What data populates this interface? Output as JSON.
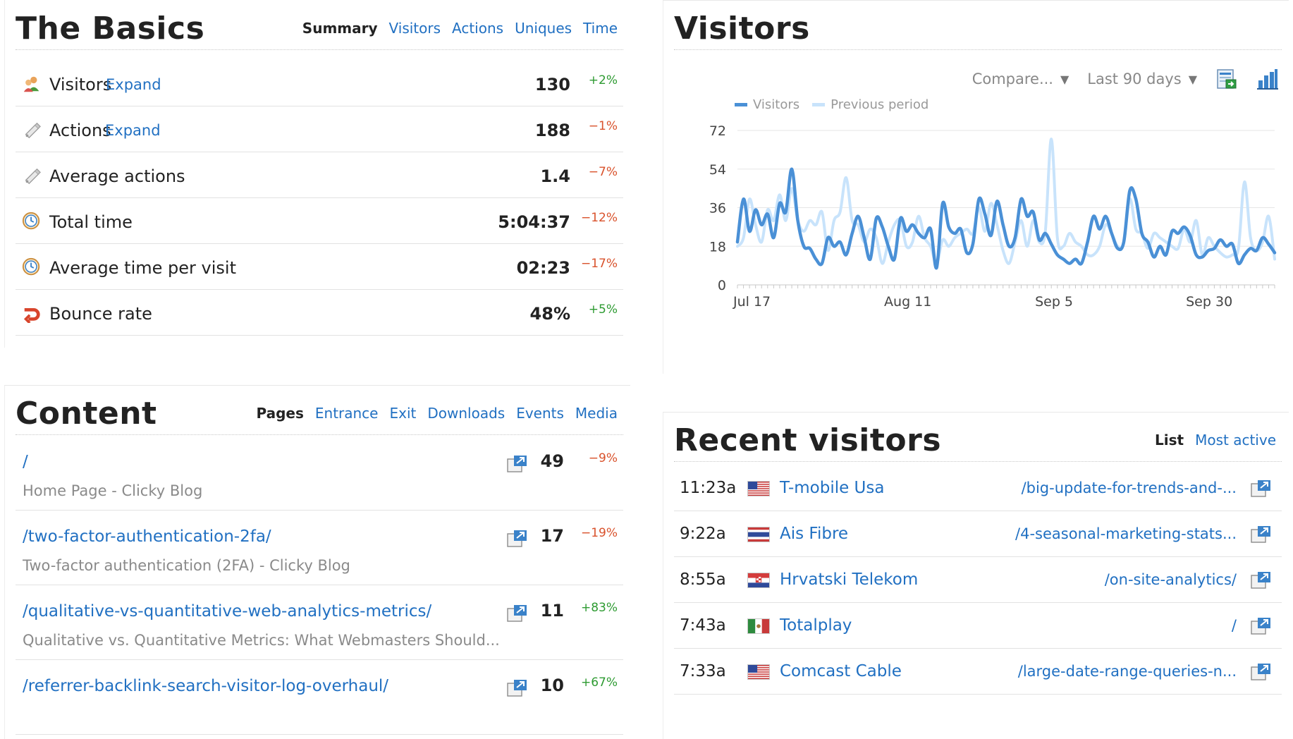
{
  "basics": {
    "title": "The Basics",
    "tabs": [
      "Summary",
      "Visitors",
      "Actions",
      "Uniques",
      "Time"
    ],
    "rows": [
      {
        "icon": "visitors-icon",
        "label": "Visitors",
        "expand": "Expand",
        "value": "130",
        "change": "+2%",
        "trend": "up"
      },
      {
        "icon": "actions-icon",
        "label": "Actions",
        "expand": "Expand",
        "value": "188",
        "change": "−1%",
        "trend": "down"
      },
      {
        "icon": "actions-icon",
        "label": "Average actions",
        "expand": "",
        "value": "1.4",
        "change": "−7%",
        "trend": "down"
      },
      {
        "icon": "clock-icon",
        "label": "Total time",
        "expand": "",
        "value": "5:04:37",
        "change": "−12%",
        "trend": "down"
      },
      {
        "icon": "clock-icon",
        "label": "Average time per visit",
        "expand": "",
        "value": "02:23",
        "change": "−17%",
        "trend": "down"
      },
      {
        "icon": "bounce-icon",
        "label": "Bounce rate",
        "expand": "",
        "value": "48%",
        "change": "+5%",
        "trend": "up"
      }
    ]
  },
  "visitors": {
    "title": "Visitors",
    "compare_label": "Compare...",
    "range_label": "Last 90 days",
    "toolbar_icons": [
      "export-icon",
      "bar-chart-icon"
    ]
  },
  "chart_data": {
    "type": "line",
    "title": "",
    "xlabel": "",
    "ylabel": "",
    "ylim": [
      0,
      72
    ],
    "yticks": [
      "0",
      "18",
      "36",
      "54",
      "72"
    ],
    "xtick_labels": [
      "Jul 17",
      "Aug 11",
      "Sep 5",
      "Sep 30"
    ],
    "xtick_index": [
      0,
      25,
      50,
      75
    ],
    "grid": true,
    "legend_position": "top-left",
    "x_count": 90,
    "series": [
      {
        "name": "Visitors",
        "color": "#4a90d6",
        "values": [
          20,
          40,
          25,
          35,
          28,
          33,
          22,
          38,
          34,
          54,
          30,
          18,
          17,
          12,
          10,
          22,
          18,
          20,
          14,
          24,
          32,
          22,
          12,
          31,
          27,
          18,
          12,
          31,
          25,
          28,
          24,
          22,
          26,
          8,
          38,
          27,
          24,
          26,
          15,
          19,
          40,
          33,
          23,
          39,
          28,
          18,
          22,
          40,
          32,
          34,
          21,
          24,
          19,
          14,
          12,
          10,
          12,
          10,
          20,
          32,
          26,
          32,
          24,
          17,
          20,
          44,
          40,
          24,
          20,
          13,
          18,
          14,
          25,
          24,
          27,
          23,
          14,
          13,
          16,
          17,
          21,
          18,
          19,
          10,
          14,
          17,
          16,
          22,
          19,
          15
        ],
        "line_width": 4.5
      },
      {
        "name": "Previous period",
        "color": "#c8e3fb",
        "values": [
          18,
          22,
          40,
          28,
          20,
          35,
          30,
          42,
          30,
          45,
          30,
          25,
          30,
          28,
          34,
          16,
          30,
          34,
          50,
          30,
          28,
          20,
          26,
          22,
          10,
          20,
          28,
          30,
          18,
          20,
          32,
          22,
          18,
          10,
          21,
          18,
          22,
          24,
          26,
          24,
          36,
          25,
          38,
          28,
          16,
          10,
          20,
          30,
          18,
          30,
          20,
          25,
          68,
          22,
          18,
          24,
          20,
          18,
          14,
          14,
          18,
          28,
          24,
          18,
          20,
          40,
          26,
          24,
          17,
          24,
          22,
          20,
          18,
          17,
          26,
          20,
          30,
          14,
          22,
          18,
          15,
          13,
          14,
          17,
          48,
          22,
          16,
          20,
          32,
          12
        ],
        "line_width": 4
      }
    ]
  },
  "content": {
    "title": "Content",
    "tabs": [
      "Pages",
      "Entrance",
      "Exit",
      "Downloads",
      "Events",
      "Media"
    ],
    "rows": [
      {
        "path": "/",
        "title": "Home Page - Clicky Blog",
        "value": "49",
        "change": "−9%",
        "trend": "down"
      },
      {
        "path": "/two-factor-authentication-2fa/",
        "title": "Two-factor authentication (2FA) - Clicky Blog",
        "value": "17",
        "change": "−19%",
        "trend": "down"
      },
      {
        "path": "/qualitative-vs-quantitative-web-analytics-metrics/",
        "title": "Qualitative vs. Quantitative Metrics: What Webmasters Should...",
        "value": "11",
        "change": "+83%",
        "trend": "up"
      },
      {
        "path": "/referrer-backlink-search-visitor-log-overhaul/",
        "title": "",
        "value": "10",
        "change": "+67%",
        "trend": "up"
      }
    ]
  },
  "recent": {
    "title": "Recent visitors",
    "tabs": [
      "List",
      "Most active"
    ],
    "rows": [
      {
        "time": "11:23a",
        "flag": "us",
        "isp": "T-mobile Usa",
        "path": "/big-update-for-trends-and-..."
      },
      {
        "time": "9:22a",
        "flag": "th",
        "isp": "Ais Fibre",
        "path": "/4-seasonal-marketing-stats..."
      },
      {
        "time": "8:55a",
        "flag": "hr",
        "isp": "Hrvatski Telekom",
        "path": "/on-site-analytics/"
      },
      {
        "time": "7:43a",
        "flag": "mx",
        "isp": "Totalplay",
        "path": "/"
      },
      {
        "time": "7:33a",
        "flag": "us",
        "isp": "Comcast Cable",
        "path": "/large-date-range-queries-n..."
      }
    ]
  }
}
